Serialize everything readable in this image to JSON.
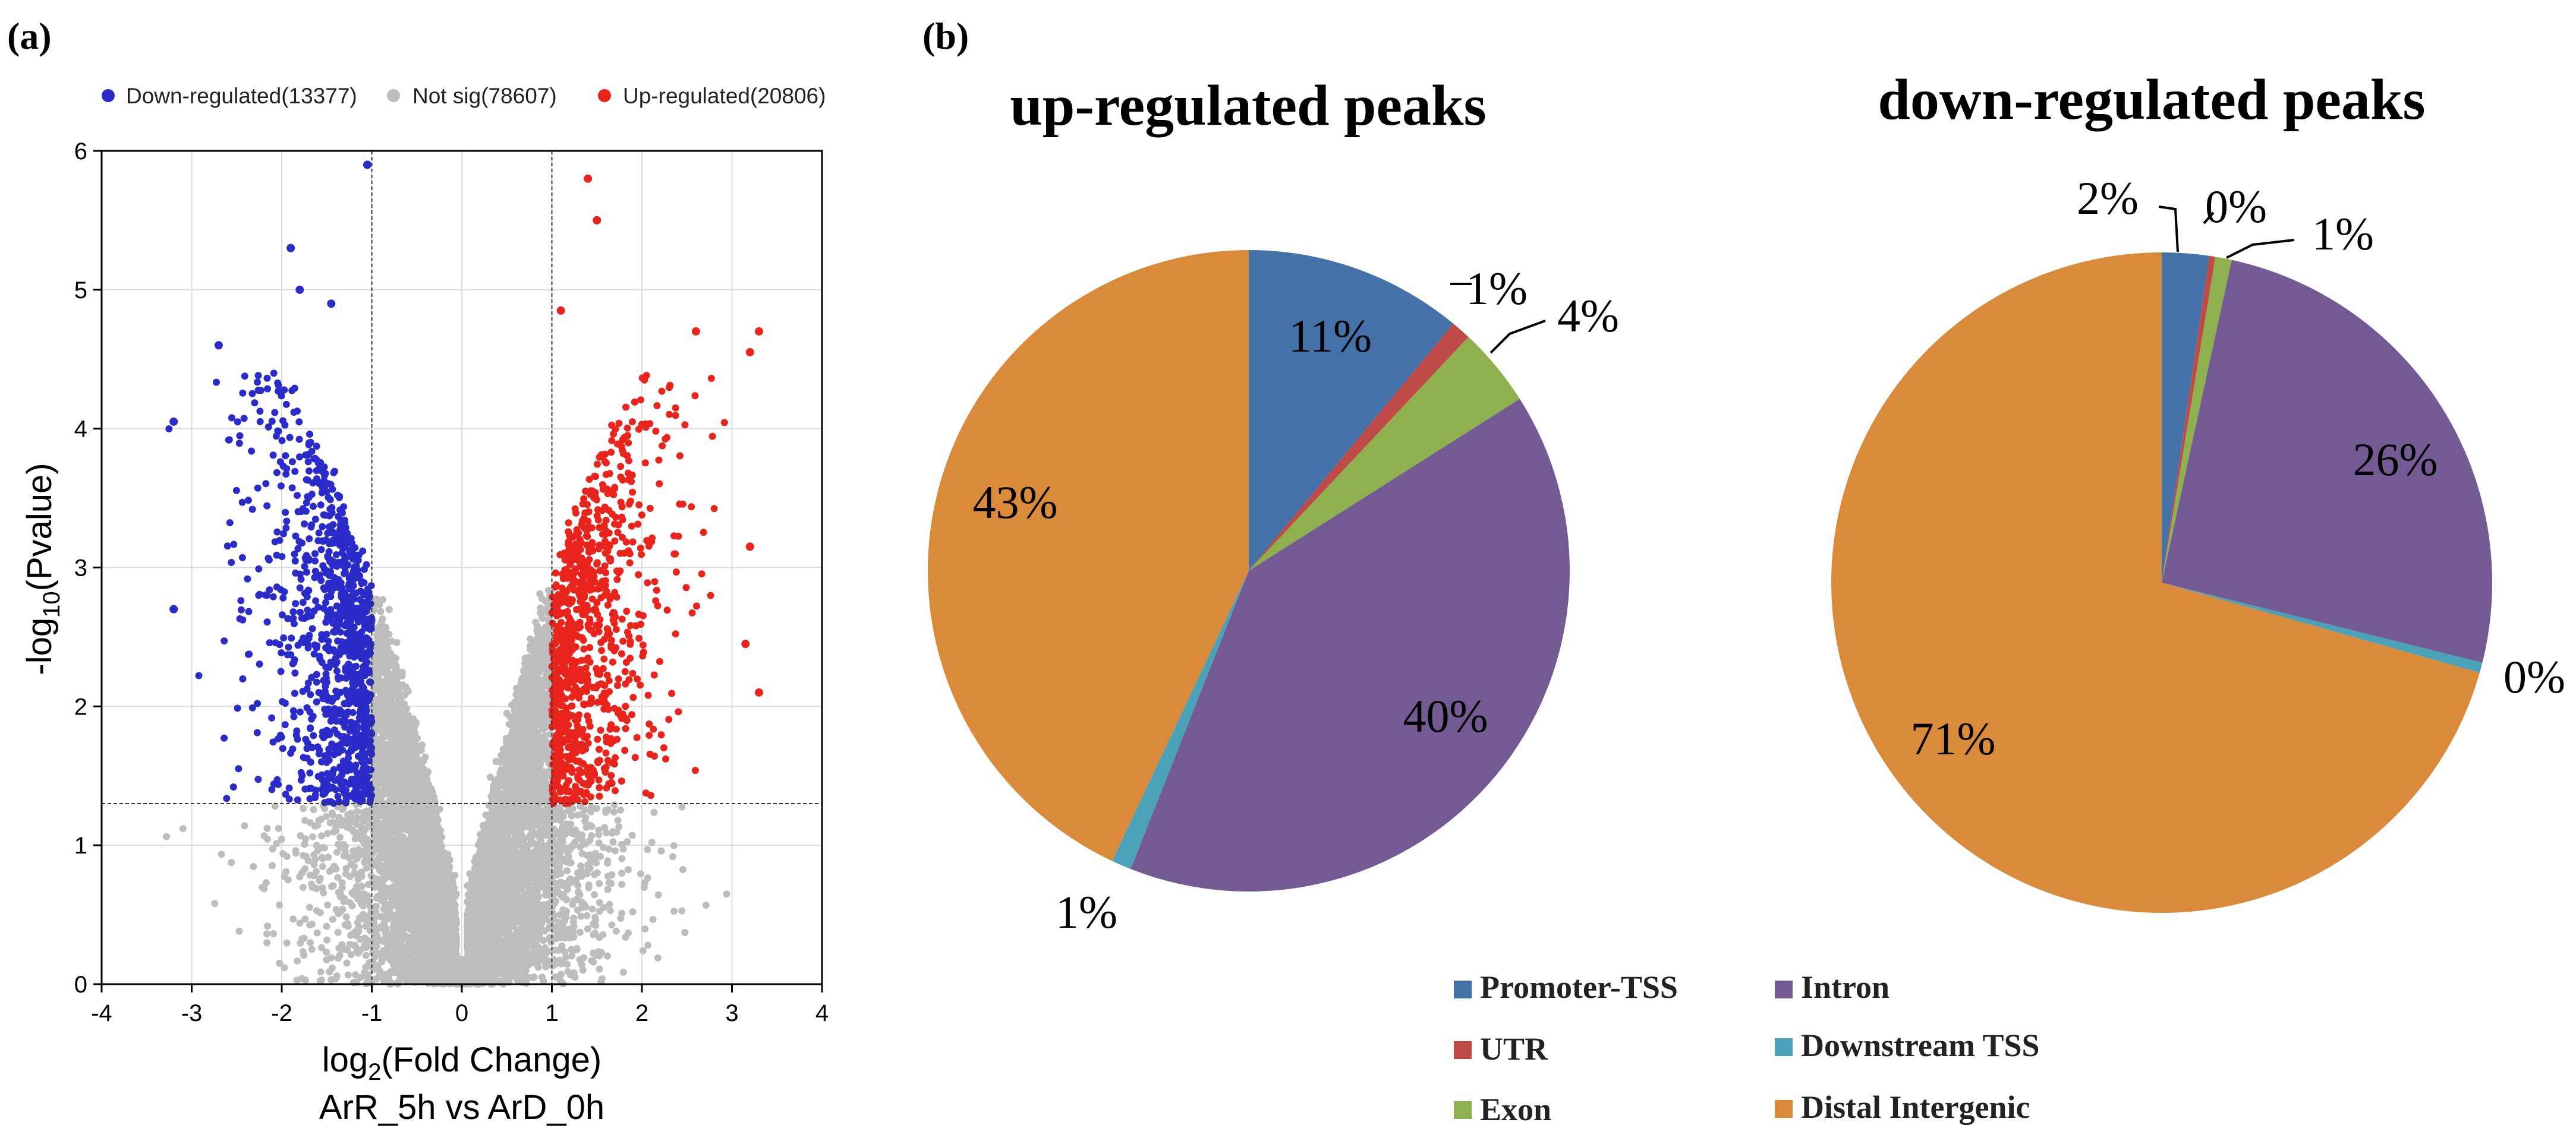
{
  "panels": {
    "a_label": "(a)",
    "b_label": "(b)"
  },
  "volcano": {
    "legend": [
      {
        "label": "Down-regulated(13377)",
        "color": "#2b2bc9"
      },
      {
        "label": "Not sig(78607)",
        "color": "#bdbdbd"
      },
      {
        "label": "Up-regulated(20806)",
        "color": "#e8241c"
      }
    ],
    "ylabel_main": "-log",
    "ylabel_sub": "10",
    "ylabel_rest": "(Pvalue)",
    "xlabel_main": "log",
    "xlabel_sub": "2",
    "xlabel_rest": "(Fold Change)",
    "subtitle": "ArR_5h  vs  ArD_0h"
  },
  "chart_data": [
    {
      "type": "scatter",
      "title": "",
      "xlabel": "log2(Fold Change)",
      "ylabel": "-log10(Pvalue)",
      "xlim": [
        -4,
        4
      ],
      "ylim": [
        0,
        6
      ],
      "xticks": [
        -4,
        -3,
        -2,
        -1,
        0,
        1,
        2,
        3,
        4
      ],
      "yticks": [
        0,
        1,
        2,
        3,
        4,
        5,
        6
      ],
      "grid": true,
      "thresholds": {
        "log2fc": [
          -1,
          1
        ],
        "neg_log10_p": 1.3
      },
      "series": [
        {
          "name": "Down-regulated",
          "count": 13377,
          "color": "#2b2bc9"
        },
        {
          "name": "Not sig",
          "count": 78607,
          "color": "#bdbdbd"
        },
        {
          "name": "Up-regulated",
          "count": 20806,
          "color": "#e8241c"
        }
      ],
      "outliers": [
        {
          "x": -3.2,
          "y": 4.05
        },
        {
          "x": -2.7,
          "y": 4.6
        },
        {
          "x": -1.9,
          "y": 5.3
        },
        {
          "x": -1.8,
          "y": 5.0
        },
        {
          "x": -1.45,
          "y": 4.9
        },
        {
          "x": -1.05,
          "y": 5.9
        },
        {
          "x": 1.4,
          "y": 5.8
        },
        {
          "x": 1.5,
          "y": 5.5
        },
        {
          "x": 1.1,
          "y": 4.85
        },
        {
          "x": 3.2,
          "y": 4.55
        },
        {
          "x": 3.3,
          "y": 4.7
        },
        {
          "x": 3.2,
          "y": 3.15
        },
        {
          "x": 3.3,
          "y": 2.1
        },
        {
          "x": 3.15,
          "y": 2.45
        },
        {
          "x": -3.2,
          "y": 2.7
        },
        {
          "x": 2.6,
          "y": 4.7
        }
      ]
    },
    {
      "type": "pie",
      "title": "up-regulated peaks",
      "categories": [
        "Promoter-TSS",
        "UTR",
        "Exon",
        "Intron",
        "Downstream TSS",
        "Distal Intergenic"
      ],
      "values": [
        11,
        1,
        4,
        40,
        1,
        43
      ],
      "labels": [
        "11%",
        "1%",
        "4%",
        "40%",
        "1%",
        "43%"
      ]
    },
    {
      "type": "pie",
      "title": "down-regulated peaks",
      "categories": [
        "Promoter-TSS",
        "UTR",
        "Exon",
        "Intron",
        "Downstream TSS",
        "Distal Intergenic"
      ],
      "values": [
        2.3,
        0.3,
        0.8,
        25.5,
        0.5,
        70.6
      ],
      "labels": [
        "2%",
        "0%",
        "1%",
        "26%",
        "0%",
        "71%"
      ]
    }
  ],
  "pie_legend": [
    {
      "label": "Promoter-TSS",
      "color": "#4472a8"
    },
    {
      "label": "UTR",
      "color": "#be4b48"
    },
    {
      "label": "Exon",
      "color": "#8fb04e"
    },
    {
      "label": "Intron",
      "color": "#735a93"
    },
    {
      "label": "Downstream TSS",
      "color": "#4aa1b8"
    },
    {
      "label": "Distal Intergenic",
      "color": "#d98a3b"
    }
  ],
  "colors": {
    "down": "#2b2bc9",
    "notsig": "#bdbdbd",
    "up": "#e8241c"
  }
}
